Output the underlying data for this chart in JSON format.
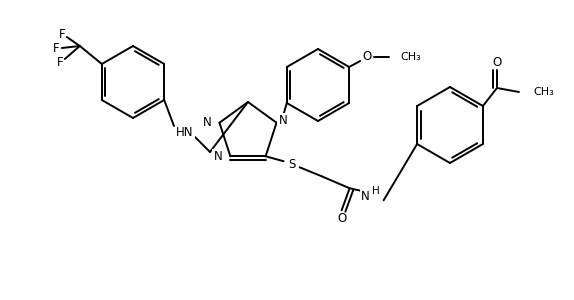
{
  "bg": "#ffffff",
  "lc": "#000000",
  "lw": 1.4,
  "fs": 8.5,
  "figsize": [
    5.74,
    3.0
  ],
  "dpi": 100,
  "xlim": [
    0,
    574
  ],
  "ylim": [
    0,
    300
  ]
}
